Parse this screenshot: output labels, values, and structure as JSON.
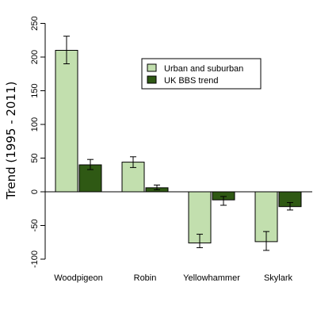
{
  "chart_data": {
    "type": "bar",
    "ylabel": "Trend (1995 - 2011)",
    "xlabel": "",
    "ylim": [
      -100,
      250
    ],
    "yticks": [
      -100,
      -50,
      0,
      50,
      100,
      150,
      200,
      250
    ],
    "ytick_labels": [
      "-100",
      "-50",
      "0",
      "50",
      "100",
      "150",
      "200",
      "250"
    ],
    "categories": [
      "Woodpigeon",
      "Robin",
      "Yellowhammer",
      "Skylark"
    ],
    "series": [
      {
        "name": "Urban and suburban",
        "color": "#c2dfae",
        "values": [
          210,
          44,
          -76,
          -74
        ],
        "error_low": [
          190,
          36,
          -83,
          -87
        ],
        "error_high": [
          231,
          52,
          -63,
          -59
        ]
      },
      {
        "name": "UK BBS trend",
        "color": "#2f5914",
        "values": [
          40,
          6,
          -12,
          -22
        ],
        "error_low": [
          33,
          3,
          -20,
          -27
        ],
        "error_high": [
          48,
          10,
          -7,
          -16
        ]
      }
    ],
    "legend_position": "top-right",
    "grid": false
  }
}
